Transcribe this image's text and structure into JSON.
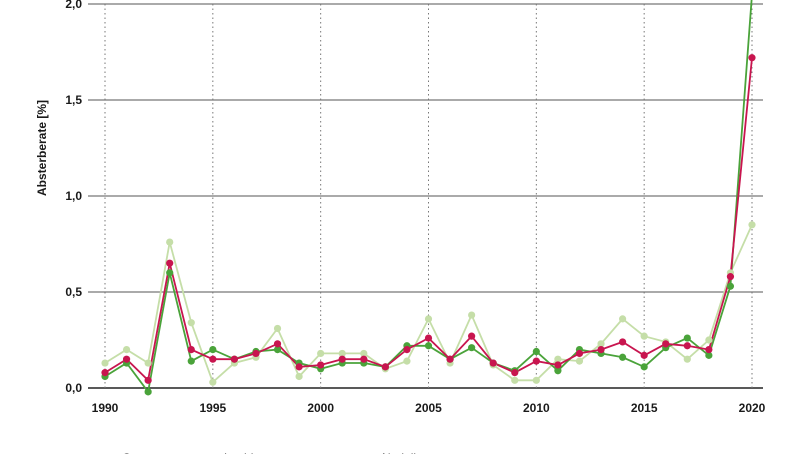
{
  "chart_data": {
    "type": "line",
    "ylabel": "Absterberate [%]",
    "xlabel": "",
    "xlim": [
      1990,
      2020
    ],
    "ylim": [
      0,
      2.0
    ],
    "x_ticks": [
      "1990",
      "1995",
      "2000",
      "2005",
      "2010",
      "2015",
      "2020"
    ],
    "x_tick_values": [
      1990,
      1995,
      2000,
      2005,
      2010,
      2015,
      2020
    ],
    "y_ticks": [
      "0,0",
      "0,5",
      "1,0",
      "1,5",
      "2,0"
    ],
    "y_tick_values": [
      0,
      0.5,
      1.0,
      1.5,
      2.0
    ],
    "grid": "horizontal solid, vertical dotted",
    "legend_position": "bottom-left",
    "x": [
      1990,
      1991,
      1992,
      1993,
      1994,
      1995,
      1996,
      1997,
      1998,
      1999,
      2000,
      2001,
      2002,
      2003,
      2004,
      2005,
      2006,
      2007,
      2008,
      2009,
      2010,
      2011,
      2012,
      2013,
      2014,
      2015,
      2016,
      2017,
      2018,
      2019,
      2020
    ],
    "series": [
      {
        "name": "Gesamt",
        "color": "#c8154f",
        "values": [
          0.08,
          0.15,
          0.04,
          0.65,
          0.2,
          0.15,
          0.15,
          0.18,
          0.23,
          0.11,
          0.12,
          0.15,
          0.15,
          0.11,
          0.2,
          0.26,
          0.15,
          0.27,
          0.13,
          0.08,
          0.14,
          0.12,
          0.18,
          0.2,
          0.24,
          0.17,
          0.23,
          0.22,
          0.2,
          0.58,
          1.72
        ]
      },
      {
        "name": "Laubbaumarten",
        "color": "#c5dea8",
        "values": [
          0.13,
          0.2,
          0.13,
          0.76,
          0.34,
          0.03,
          0.13,
          0.16,
          0.31,
          0.06,
          0.18,
          0.18,
          0.18,
          0.1,
          0.14,
          0.36,
          0.13,
          0.38,
          0.12,
          0.04,
          0.04,
          0.15,
          0.14,
          0.23,
          0.36,
          0.27,
          0.24,
          0.15,
          0.25,
          0.6,
          0.85
        ]
      },
      {
        "name": "Nadelbaumarten",
        "color": "#4aa33a",
        "values": [
          0.06,
          0.13,
          -0.02,
          0.6,
          0.14,
          0.2,
          0.15,
          0.19,
          0.2,
          0.13,
          0.1,
          0.13,
          0.13,
          0.11,
          0.22,
          0.22,
          0.15,
          0.21,
          0.13,
          0.09,
          0.19,
          0.09,
          0.2,
          0.18,
          0.16,
          0.11,
          0.21,
          0.26,
          0.17,
          0.53,
          2.05
        ]
      }
    ]
  }
}
